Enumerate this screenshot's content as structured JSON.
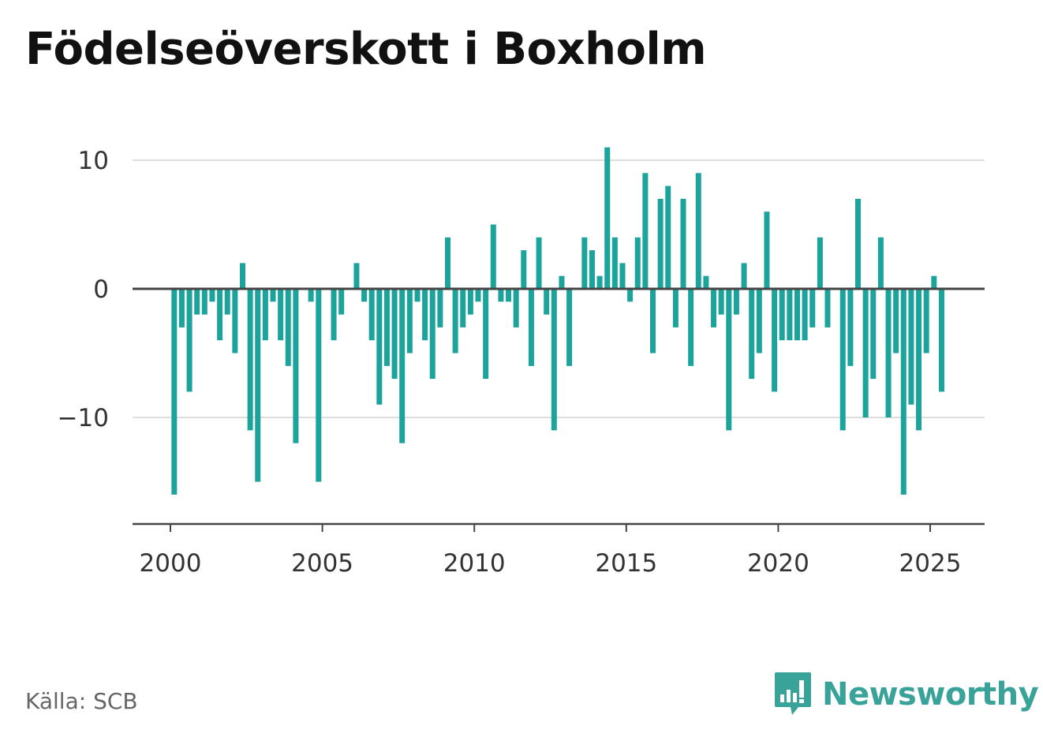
{
  "title": "Födelseöverskott i Boxholm",
  "source": "Källa: SCB",
  "brand": {
    "name": "Newsworthy",
    "icon": "newsworthy-logo-icon"
  },
  "colors": {
    "bar": "#1ba39c",
    "axis": "#444444",
    "grid": "#dddddd",
    "brand": "#3aa399"
  },
  "chart_data": {
    "type": "bar",
    "title": "Födelseöverskott i Boxholm",
    "xlabel": "",
    "ylabel": "",
    "ylim": [
      -18,
      12
    ],
    "xlim": [
      1999.5,
      2026.75
    ],
    "grid": true,
    "y_ticks": [
      10,
      0,
      -10
    ],
    "y_tick_labels": [
      "10",
      "0",
      "−10"
    ],
    "x_ticks": [
      2000,
      2005,
      2010,
      2015,
      2020,
      2025
    ],
    "x_tick_labels": [
      "2000",
      "2005",
      "2010",
      "2015",
      "2020",
      "2025"
    ],
    "x": [
      2000.125,
      2000.375,
      2000.625,
      2000.875,
      2001.125,
      2001.375,
      2001.625,
      2001.875,
      2002.125,
      2002.375,
      2002.625,
      2002.875,
      2003.125,
      2003.375,
      2003.625,
      2003.875,
      2004.125,
      2004.375,
      2004.625,
      2004.875,
      2005.125,
      2005.375,
      2005.625,
      2005.875,
      2006.125,
      2006.375,
      2006.625,
      2006.875,
      2007.125,
      2007.375,
      2007.625,
      2007.875,
      2008.125,
      2008.375,
      2008.625,
      2008.875,
      2009.125,
      2009.375,
      2009.625,
      2009.875,
      2010.125,
      2010.375,
      2010.625,
      2010.875,
      2011.125,
      2011.375,
      2011.625,
      2011.875,
      2012.125,
      2012.375,
      2012.625,
      2012.875,
      2013.125,
      2013.375,
      2013.625,
      2013.875,
      2014.125,
      2014.375,
      2014.625,
      2014.875,
      2015.125,
      2015.375,
      2015.625,
      2015.875,
      2016.125,
      2016.375,
      2016.625,
      2016.875,
      2017.125,
      2017.375,
      2017.625,
      2017.875,
      2018.125,
      2018.375,
      2018.625,
      2018.875,
      2019.125,
      2019.375,
      2019.625,
      2019.875,
      2020.125,
      2020.375,
      2020.625,
      2020.875,
      2021.125,
      2021.375,
      2021.625,
      2021.875,
      2022.125,
      2022.375,
      2022.625,
      2022.875,
      2023.125,
      2023.375,
      2023.625,
      2023.875,
      2024.125,
      2024.375,
      2024.625,
      2024.875,
      2025.125,
      2025.375
    ],
    "values": [
      -16,
      -3,
      -8,
      -2,
      -2,
      -1,
      -4,
      -2,
      -5,
      2,
      -11,
      -15,
      -4,
      -1,
      -4,
      -6,
      -12,
      0,
      -1,
      -15,
      0,
      -4,
      -2,
      0,
      2,
      -1,
      -4,
      -9,
      -6,
      -7,
      -12,
      -5,
      -1,
      -4,
      -7,
      -3,
      4,
      -5,
      -3,
      -2,
      -1,
      -7,
      5,
      -1,
      -1,
      -3,
      3,
      -6,
      4,
      -2,
      -11,
      1,
      -6,
      0,
      4,
      3,
      1,
      11,
      4,
      2,
      -1,
      4,
      9,
      -5,
      7,
      8,
      -3,
      7,
      -6,
      9,
      1,
      -3,
      -2,
      -11,
      -2,
      2,
      -7,
      -5,
      6,
      -8,
      -4,
      -4,
      -4,
      -4,
      -3,
      4,
      -3,
      0,
      -11,
      -6,
      7,
      -10,
      -7,
      4,
      -10,
      -5,
      -16,
      -9,
      -11,
      -5,
      1,
      -8
    ]
  }
}
